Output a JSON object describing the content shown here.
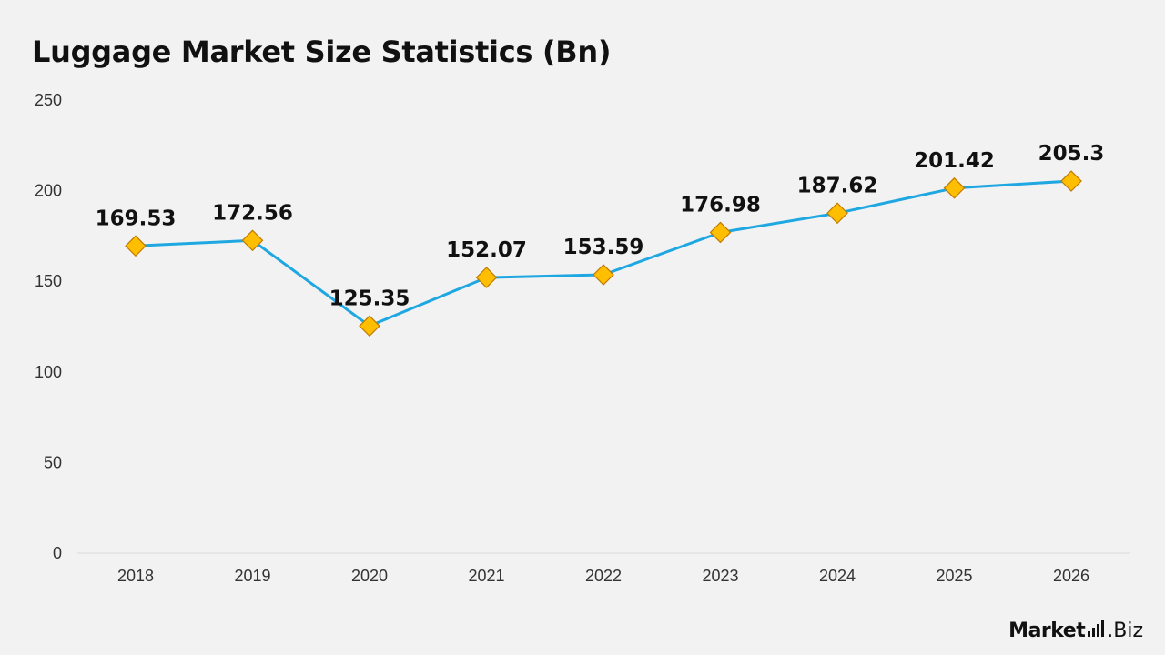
{
  "title": "Luggage Market Size Statistics (Bn)",
  "brand": {
    "part1": "Market",
    "part2": ".Biz"
  },
  "colors": {
    "line": "#1ea7e1",
    "marker": "#ffbf00",
    "marker_stroke": "#c07a00",
    "axis": "#d9d9d9"
  },
  "chart_data": {
    "type": "line",
    "title": "Luggage Market Size Statistics (Bn)",
    "x": [
      "2018",
      "2019",
      "2020",
      "2021",
      "2022",
      "2023",
      "2024",
      "2025",
      "2026"
    ],
    "series": [
      {
        "values": [
          169.53,
          172.56,
          125.35,
          152.07,
          153.59,
          176.98,
          187.62,
          201.42,
          205.3
        ]
      }
    ],
    "data_labels": [
      "169.53",
      "172.56",
      "125.35",
      "152.07",
      "153.59",
      "176.98",
      "187.62",
      "201.42",
      "205.3"
    ],
    "yticks": [
      0,
      50,
      100,
      150,
      200,
      250
    ],
    "ylim": [
      0,
      250
    ],
    "xlabel": "",
    "ylabel": "",
    "grid": false,
    "legend": "none",
    "marker": "diamond"
  }
}
